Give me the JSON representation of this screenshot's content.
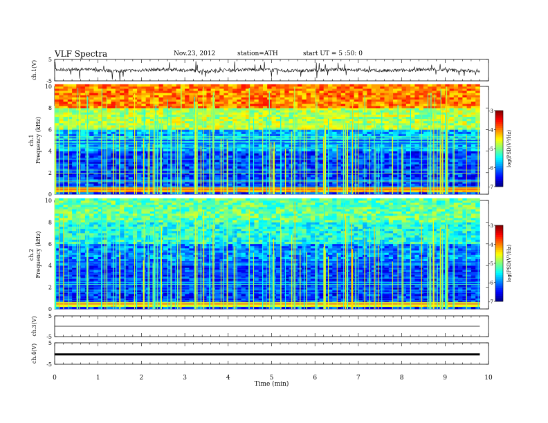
{
  "header": {
    "title": "VLF  Spectra",
    "date": "Nov.23, 2012",
    "station": "station=ATH",
    "start": "start  UT  =   5  :50: 0"
  },
  "chart_data": [
    {
      "type": "line",
      "panel": "ch1-waveform",
      "ylabel": "ch.1(V)",
      "ylim": [
        -5,
        5
      ],
      "ytick_labels": [
        "5",
        "-5"
      ],
      "xlim": [
        0,
        10
      ],
      "signal": "noisy broadband waveform centered near 0 V with frequent impulsive spikes (sferics)"
    },
    {
      "type": "heatmap",
      "panel": "ch1-spectrogram",
      "ylabel_top": "ch.1",
      "ylabel": "Frequency  (kHz)",
      "ylim": [
        0,
        10
      ],
      "ytick_labels": [
        "0",
        "2",
        "4",
        "6",
        "8",
        "10"
      ],
      "xlim": [
        0,
        9.8
      ],
      "colorbar": {
        "label": "log(PSD(V²/Hz)",
        "range": [
          -7,
          -3
        ],
        "tick_labels": [
          "-3",
          "-4",
          "-5",
          "-6",
          "-7"
        ]
      },
      "levels_by_band": [
        {
          "band_khz": [
            8,
            10
          ],
          "log_psd": -4.0
        },
        {
          "band_khz": [
            6,
            8
          ],
          "log_psd": -4.8
        },
        {
          "band_khz": [
            4,
            6
          ],
          "log_psd": -5.8
        },
        {
          "band_khz": [
            0.5,
            4
          ],
          "log_psd": -6.3
        },
        {
          "band_khz": [
            0.2,
            0.6
          ],
          "log_psd": -4.2
        }
      ]
    },
    {
      "type": "heatmap",
      "panel": "ch2-spectrogram",
      "ylabel_top": "ch.2",
      "ylabel": "Frequency  (kHz)",
      "ylim": [
        0,
        10
      ],
      "ytick_labels": [
        "0",
        "2",
        "4",
        "6",
        "8",
        "10"
      ],
      "xlim": [
        0,
        9.8
      ],
      "colorbar": {
        "label": "log(PSD(V²/Hz)",
        "range": [
          -7,
          -3
        ],
        "tick_labels": [
          "-3",
          "-4",
          "-5",
          "-6",
          "-7"
        ]
      },
      "levels_by_band": [
        {
          "band_khz": [
            8,
            10
          ],
          "log_psd": -5.1
        },
        {
          "band_khz": [
            6,
            8
          ],
          "log_psd": -5.4
        },
        {
          "band_khz": [
            4,
            6
          ],
          "log_psd": -6.0
        },
        {
          "band_khz": [
            0.5,
            4
          ],
          "log_psd": -6.3
        },
        {
          "band_khz": [
            0.2,
            0.6
          ],
          "log_psd": -4.6
        }
      ]
    },
    {
      "type": "line",
      "panel": "ch3-waveform",
      "ylabel": "ch.3(V)",
      "ylim": [
        -5,
        5
      ],
      "ytick_labels": [
        "5",
        "-5"
      ],
      "xlim": [
        0,
        9.8
      ],
      "signal": "flat near 0 V"
    },
    {
      "type": "line",
      "panel": "ch4-waveform",
      "ylabel": "ch.4(V)",
      "ylim": [
        -5,
        5
      ],
      "ytick_labels": [
        "5",
        "-5"
      ],
      "xlim": [
        0,
        9.8
      ],
      "signal": "thick flat trace slightly below 0 V"
    }
  ],
  "xaxis": {
    "label": "Time  (min)",
    "range": [
      0,
      10
    ],
    "tick_labels": [
      "0",
      "1",
      "2",
      "3",
      "4",
      "5",
      "6",
      "7",
      "8",
      "9",
      "10"
    ]
  }
}
